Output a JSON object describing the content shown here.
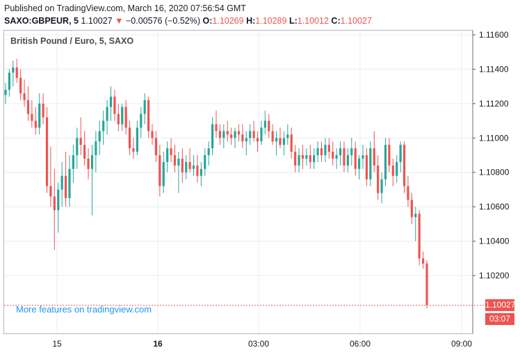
{
  "header": {
    "published": "Published on TradingView.com, March 16, 2020 07:56:54 GMT",
    "symbol": "SAXO:GBPEUR, 5",
    "last": "1.10027",
    "arrow": "▼",
    "change": "−0.00576 (−0.52%)",
    "o_label": "O:",
    "o_value": "1.10269",
    "h_label": "H:",
    "h_value": "1.10289",
    "l_label": "L:",
    "l_value": "1.10012",
    "c_label": "C:",
    "c_value": "1.10027"
  },
  "legend_title": "British Pound / Euro, 5, SAXO",
  "promo_text": "More features on tradingview.com",
  "price_tag": "1.10027",
  "countdown_tag": "03:07",
  "colors": {
    "up": "#26a69a",
    "down": "#ef5350",
    "grid": "#e9ecf1",
    "axis": "#b2b5be"
  },
  "chart_data": {
    "type": "candlestick",
    "y_ticks": [
      "1.11600",
      "1.11400",
      "1.11200",
      "1.11000",
      "1.10800",
      "1.10600",
      "1.10400",
      "1.10200"
    ],
    "x_ticks": [
      "15",
      "16",
      "03:00",
      "06:00",
      "09:00"
    ],
    "ylim": [
      1.0985,
      1.117
    ],
    "last_price": 1.10027,
    "bars": [
      [
        1.1125,
        1.1132,
        1.112,
        1.1128
      ],
      [
        1.1128,
        1.114,
        1.1124,
        1.1138
      ],
      [
        1.1138,
        1.1145,
        1.113,
        1.1141
      ],
      [
        1.1141,
        1.1146,
        1.1132,
        1.1135
      ],
      [
        1.1135,
        1.114,
        1.1122,
        1.1126
      ],
      [
        1.1126,
        1.1134,
        1.1118,
        1.1122
      ],
      [
        1.1122,
        1.113,
        1.111,
        1.1114
      ],
      [
        1.1114,
        1.1122,
        1.1106,
        1.111
      ],
      [
        1.111,
        1.1118,
        1.1102,
        1.1106
      ],
      [
        1.1106,
        1.1126,
        1.1102,
        1.112
      ],
      [
        1.112,
        1.1126,
        1.1108,
        1.1112
      ],
      [
        1.1112,
        1.1118,
        1.1068,
        1.1072
      ],
      [
        1.1072,
        1.1095,
        1.106,
        1.1066
      ],
      [
        1.1066,
        1.1082,
        1.1035,
        1.1058
      ],
      [
        1.1058,
        1.1074,
        1.1045,
        1.107
      ],
      [
        1.107,
        1.1086,
        1.106,
        1.1078
      ],
      [
        1.1078,
        1.1092,
        1.106,
        1.1065
      ],
      [
        1.1065,
        1.109,
        1.106,
        1.1082
      ],
      [
        1.1082,
        1.1096,
        1.1074,
        1.109
      ],
      [
        1.109,
        1.1106,
        1.1082,
        1.11
      ],
      [
        1.11,
        1.1112,
        1.109,
        1.1096
      ],
      [
        1.1096,
        1.1104,
        1.1084,
        1.1088
      ],
      [
        1.1088,
        1.1094,
        1.1076,
        1.1082
      ],
      [
        1.1082,
        1.1096,
        1.1055,
        1.109
      ],
      [
        1.109,
        1.1104,
        1.108,
        1.1098
      ],
      [
        1.1098,
        1.111,
        1.109,
        1.1104
      ],
      [
        1.1104,
        1.1116,
        1.1096,
        1.111
      ],
      [
        1.111,
        1.1122,
        1.1102,
        1.1118
      ],
      [
        1.1118,
        1.113,
        1.111,
        1.1124
      ],
      [
        1.1124,
        1.1128,
        1.111,
        1.1114
      ],
      [
        1.1114,
        1.112,
        1.1104,
        1.1108
      ],
      [
        1.1108,
        1.112,
        1.1104,
        1.1118
      ],
      [
        1.1118,
        1.1122,
        1.1102,
        1.1106
      ],
      [
        1.1106,
        1.111,
        1.109,
        1.1094
      ],
      [
        1.1094,
        1.11,
        1.1088,
        1.1092
      ],
      [
        1.1092,
        1.111,
        1.109,
        1.1106
      ],
      [
        1.1106,
        1.1118,
        1.11,
        1.1114
      ],
      [
        1.1114,
        1.1126,
        1.1108,
        1.1122
      ],
      [
        1.1122,
        1.1124,
        1.11,
        1.1104
      ],
      [
        1.1104,
        1.1108,
        1.1096,
        1.11
      ],
      [
        1.11,
        1.1104,
        1.1086,
        1.109
      ],
      [
        1.109,
        1.1096,
        1.1066,
        1.1072
      ],
      [
        1.1072,
        1.1092,
        1.1068,
        1.1086
      ],
      [
        1.1086,
        1.1098,
        1.108,
        1.1094
      ],
      [
        1.1094,
        1.11,
        1.1086,
        1.109
      ],
      [
        1.109,
        1.1096,
        1.108,
        1.1084
      ],
      [
        1.1084,
        1.1092,
        1.1068,
        1.1088
      ],
      [
        1.1088,
        1.1094,
        1.1074,
        1.108
      ],
      [
        1.108,
        1.109,
        1.1076,
        1.1086
      ],
      [
        1.1086,
        1.1094,
        1.108,
        1.1082
      ],
      [
        1.1082,
        1.109,
        1.1078,
        1.1084
      ],
      [
        1.1084,
        1.109,
        1.1074,
        1.1078
      ],
      [
        1.1078,
        1.1086,
        1.1072,
        1.1082
      ],
      [
        1.1082,
        1.1094,
        1.1078,
        1.109
      ],
      [
        1.109,
        1.1098,
        1.1084,
        1.1094
      ],
      [
        1.1094,
        1.1112,
        1.109,
        1.1108
      ],
      [
        1.1108,
        1.1116,
        1.11,
        1.1104
      ],
      [
        1.1104,
        1.1108,
        1.1096,
        1.11
      ],
      [
        1.11,
        1.1108,
        1.1094,
        1.1104
      ],
      [
        1.1104,
        1.111,
        1.1098,
        1.1102
      ],
      [
        1.1102,
        1.1106,
        1.1096,
        1.11
      ],
      [
        1.11,
        1.1106,
        1.1094,
        1.1104
      ],
      [
        1.1104,
        1.1108,
        1.1098,
        1.1102
      ],
      [
        1.1102,
        1.1108,
        1.1094,
        1.1098
      ],
      [
        1.1098,
        1.1104,
        1.109,
        1.11
      ],
      [
        1.11,
        1.1108,
        1.1096,
        1.1104
      ],
      [
        1.1104,
        1.111,
        1.1098,
        1.11
      ],
      [
        1.11,
        1.1104,
        1.1092,
        1.1098
      ],
      [
        1.1098,
        1.111,
        1.1096,
        1.1106
      ],
      [
        1.1106,
        1.1116,
        1.1102,
        1.111
      ],
      [
        1.111,
        1.1114,
        1.11,
        1.1104
      ],
      [
        1.1104,
        1.1108,
        1.1096,
        1.1098
      ],
      [
        1.1098,
        1.1104,
        1.109,
        1.11
      ],
      [
        1.11,
        1.1106,
        1.1094,
        1.1096
      ],
      [
        1.1096,
        1.1104,
        1.109,
        1.11
      ],
      [
        1.11,
        1.1108,
        1.1096,
        1.1102
      ],
      [
        1.1102,
        1.1106,
        1.1088,
        1.1092
      ],
      [
        1.1092,
        1.1096,
        1.108,
        1.1084
      ],
      [
        1.1084,
        1.1094,
        1.108,
        1.109
      ],
      [
        1.109,
        1.1096,
        1.1082,
        1.1088
      ],
      [
        1.1088,
        1.1094,
        1.1084,
        1.109
      ],
      [
        1.109,
        1.1096,
        1.1082,
        1.1086
      ],
      [
        1.1086,
        1.1094,
        1.1082,
        1.109
      ],
      [
        1.109,
        1.1098,
        1.1086,
        1.1094
      ],
      [
        1.1094,
        1.1098,
        1.1086,
        1.109
      ],
      [
        1.109,
        1.11,
        1.1086,
        1.1096
      ],
      [
        1.1096,
        1.11,
        1.1088,
        1.1092
      ],
      [
        1.1092,
        1.1098,
        1.1084,
        1.1088
      ],
      [
        1.1088,
        1.1094,
        1.1082,
        1.109
      ],
      [
        1.109,
        1.1098,
        1.1084,
        1.1094
      ],
      [
        1.1094,
        1.1098,
        1.108,
        1.1084
      ],
      [
        1.1084,
        1.1094,
        1.108,
        1.109
      ],
      [
        1.109,
        1.11,
        1.1084,
        1.1094
      ],
      [
        1.1094,
        1.1098,
        1.1078,
        1.1082
      ],
      [
        1.1082,
        1.109,
        1.1076,
        1.1088
      ],
      [
        1.1088,
        1.1096,
        1.1082,
        1.109
      ],
      [
        1.109,
        1.1094,
        1.1072,
        1.1076
      ],
      [
        1.1076,
        1.1098,
        1.1072,
        1.1094
      ],
      [
        1.1094,
        1.1104,
        1.108,
        1.1084
      ],
      [
        1.1084,
        1.109,
        1.1064,
        1.1068
      ],
      [
        1.1068,
        1.108,
        1.1062,
        1.1076
      ],
      [
        1.1076,
        1.11,
        1.1072,
        1.1096
      ],
      [
        1.1096,
        1.11,
        1.108,
        1.1084
      ],
      [
        1.1084,
        1.1088,
        1.1072,
        1.1078
      ],
      [
        1.1078,
        1.109,
        1.1074,
        1.1086
      ],
      [
        1.1086,
        1.1098,
        1.108,
        1.1096
      ],
      [
        1.1096,
        1.1098,
        1.1068,
        1.1072
      ],
      [
        1.1072,
        1.1078,
        1.106,
        1.1064
      ],
      [
        1.1064,
        1.1068,
        1.105,
        1.1054
      ],
      [
        1.1054,
        1.106,
        1.104,
        1.1056
      ],
      [
        1.1056,
        1.1058,
        1.1026,
        1.103
      ],
      [
        1.103,
        1.1034,
        1.1024,
        1.1027
      ],
      [
        1.1027,
        1.1029,
        1.1001,
        1.1003
      ]
    ]
  }
}
